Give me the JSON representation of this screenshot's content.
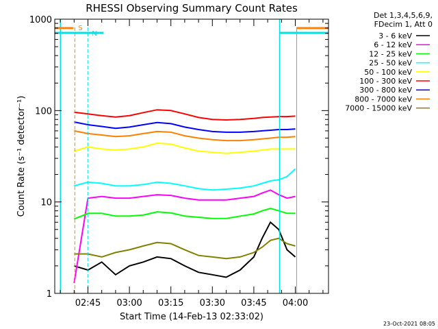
{
  "chart_data": {
    "type": "line",
    "title": "RHESSI Observing Summary Count Rates",
    "xlabel": "Start Time (14-Feb-13 02:33:02)",
    "ylabel": "Count Rate (s⁻¹ detector⁻¹)",
    "y_scale": "log",
    "ylim": [
      1,
      1000
    ],
    "xlim": [
      "02:33",
      "04:12"
    ],
    "x_ticks": [
      "02:45",
      "03:00",
      "03:15",
      "03:30",
      "03:45",
      "04:00"
    ],
    "y_ticks": [
      "1",
      "10",
      "100",
      "1000"
    ],
    "legend_header": [
      "Det 1,3,4,5,6,9,",
      "FDecim 1, Att 0"
    ],
    "legend_position": "right, outside",
    "timestamp": "23-Oct-2021 08:05",
    "flag_labels": [
      "S",
      "N"
    ],
    "x_start": "02:40",
    "x_end": "04:00",
    "series": [
      {
        "name": "3 - 6 keV",
        "color": "#000000",
        "x": [
          "02:40",
          "02:45",
          "02:50",
          "02:55",
          "03:00",
          "03:05",
          "03:10",
          "03:15",
          "03:20",
          "03:25",
          "03:30",
          "03:35",
          "03:40",
          "03:45",
          "03:48",
          "03:51",
          "03:54",
          "03:57",
          "04:00"
        ],
        "y": [
          2.0,
          1.8,
          2.2,
          1.6,
          2.0,
          2.2,
          2.5,
          2.4,
          2.0,
          1.7,
          1.6,
          1.5,
          1.8,
          2.5,
          4.0,
          6.0,
          5.0,
          3.0,
          2.5
        ]
      },
      {
        "name": "6 - 12 keV",
        "color": "#ff00ff",
        "x": [
          "02:40",
          "02:45",
          "02:50",
          "02:55",
          "03:00",
          "03:05",
          "03:10",
          "03:15",
          "03:20",
          "03:25",
          "03:30",
          "03:35",
          "03:40",
          "03:45",
          "03:48",
          "03:51",
          "03:54",
          "03:57",
          "04:00"
        ],
        "y": [
          1.3,
          11.0,
          11.5,
          11.0,
          11.0,
          11.5,
          12.0,
          11.8,
          11.0,
          10.5,
          10.5,
          10.5,
          11.0,
          11.5,
          12.5,
          13.5,
          12.0,
          11.0,
          11.5
        ]
      },
      {
        "name": "12 - 25 keV",
        "color": "#00ff00",
        "x": [
          "02:40",
          "02:45",
          "02:50",
          "02:55",
          "03:00",
          "03:05",
          "03:10",
          "03:15",
          "03:20",
          "03:25",
          "03:30",
          "03:35",
          "03:40",
          "03:45",
          "03:48",
          "03:51",
          "03:54",
          "03:57",
          "04:00"
        ],
        "y": [
          6.5,
          7.5,
          7.5,
          7.0,
          7.0,
          7.2,
          7.8,
          7.6,
          7.0,
          6.8,
          6.6,
          6.6,
          7.0,
          7.4,
          8.0,
          8.5,
          8.0,
          7.5,
          7.5
        ]
      },
      {
        "name": "25 - 50 keV",
        "color": "#00ffff",
        "x": [
          "02:40",
          "02:45",
          "02:50",
          "02:55",
          "03:00",
          "03:05",
          "03:10",
          "03:15",
          "03:20",
          "03:25",
          "03:30",
          "03:35",
          "03:40",
          "03:45",
          "03:48",
          "03:51",
          "03:54",
          "03:57",
          "04:00"
        ],
        "y": [
          15.0,
          16.5,
          16.0,
          15.0,
          15.0,
          15.5,
          16.5,
          16.0,
          15.0,
          14.0,
          13.5,
          13.8,
          14.2,
          15.0,
          16.0,
          17.0,
          17.5,
          19.0,
          23.0
        ]
      },
      {
        "name": "50 - 100 keV",
        "color": "#ffff00",
        "x": [
          "02:40",
          "02:45",
          "02:50",
          "02:55",
          "03:00",
          "03:05",
          "03:10",
          "03:15",
          "03:20",
          "03:25",
          "03:30",
          "03:35",
          "03:40",
          "03:45",
          "03:48",
          "03:51",
          "03:54",
          "03:57",
          "04:00"
        ],
        "y": [
          36.0,
          40.0,
          38.0,
          37.0,
          38.0,
          40.0,
          44.0,
          43.0,
          39.0,
          36.0,
          35.0,
          34.0,
          35.0,
          36.0,
          37.0,
          38.0,
          38.0,
          38.0,
          38.0
        ]
      },
      {
        "name": "100 - 300 keV",
        "color": "#ff0000",
        "x": [
          "02:40",
          "02:45",
          "02:50",
          "02:55",
          "03:00",
          "03:05",
          "03:10",
          "03:15",
          "03:20",
          "03:25",
          "03:30",
          "03:35",
          "03:40",
          "03:45",
          "03:48",
          "03:51",
          "03:54",
          "03:57",
          "04:00"
        ],
        "y": [
          96.0,
          92.0,
          88.0,
          85.0,
          88.0,
          95.0,
          102.0,
          100.0,
          92.0,
          84.0,
          80.0,
          79.0,
          80.0,
          82.0,
          84.0,
          85.0,
          86.0,
          86.0,
          87.0
        ]
      },
      {
        "name": "300 - 800 keV",
        "color": "#0000ff",
        "x": [
          "02:40",
          "02:45",
          "02:50",
          "02:55",
          "03:00",
          "03:05",
          "03:10",
          "03:15",
          "03:20",
          "03:25",
          "03:30",
          "03:35",
          "03:40",
          "03:45",
          "03:48",
          "03:51",
          "03:54",
          "03:57",
          "04:00"
        ],
        "y": [
          75.0,
          70.0,
          67.0,
          64.0,
          66.0,
          70.0,
          74.0,
          72.0,
          66.0,
          62.0,
          59.0,
          58.0,
          58.0,
          59.0,
          60.0,
          61.0,
          62.0,
          62.0,
          63.0
        ]
      },
      {
        "name": "800 - 7000 keV",
        "color": "#ff8000",
        "x": [
          "02:40",
          "02:45",
          "02:50",
          "02:55",
          "03:00",
          "03:05",
          "03:10",
          "03:15",
          "03:20",
          "03:25",
          "03:30",
          "03:35",
          "03:40",
          "03:45",
          "03:48",
          "03:51",
          "03:54",
          "03:57",
          "04:00"
        ],
        "y": [
          60.0,
          56.0,
          54.0,
          52.0,
          53.0,
          56.0,
          59.0,
          58.0,
          53.0,
          50.0,
          48.0,
          47.0,
          47.0,
          48.0,
          49.0,
          50.0,
          51.0,
          51.0,
          52.0
        ]
      },
      {
        "name": "7000 - 15000 keV",
        "color": "#808000",
        "x": [
          "02:40",
          "02:45",
          "02:50",
          "02:55",
          "03:00",
          "03:05",
          "03:10",
          "03:15",
          "03:20",
          "03:25",
          "03:30",
          "03:35",
          "03:40",
          "03:45",
          "03:48",
          "03:51",
          "03:54",
          "03:57",
          "04:00"
        ],
        "y": [
          2.7,
          2.7,
          2.5,
          2.8,
          3.0,
          3.3,
          3.6,
          3.5,
          3.0,
          2.6,
          2.5,
          2.4,
          2.5,
          2.8,
          3.2,
          3.8,
          4.0,
          3.5,
          3.3
        ]
      }
    ]
  }
}
